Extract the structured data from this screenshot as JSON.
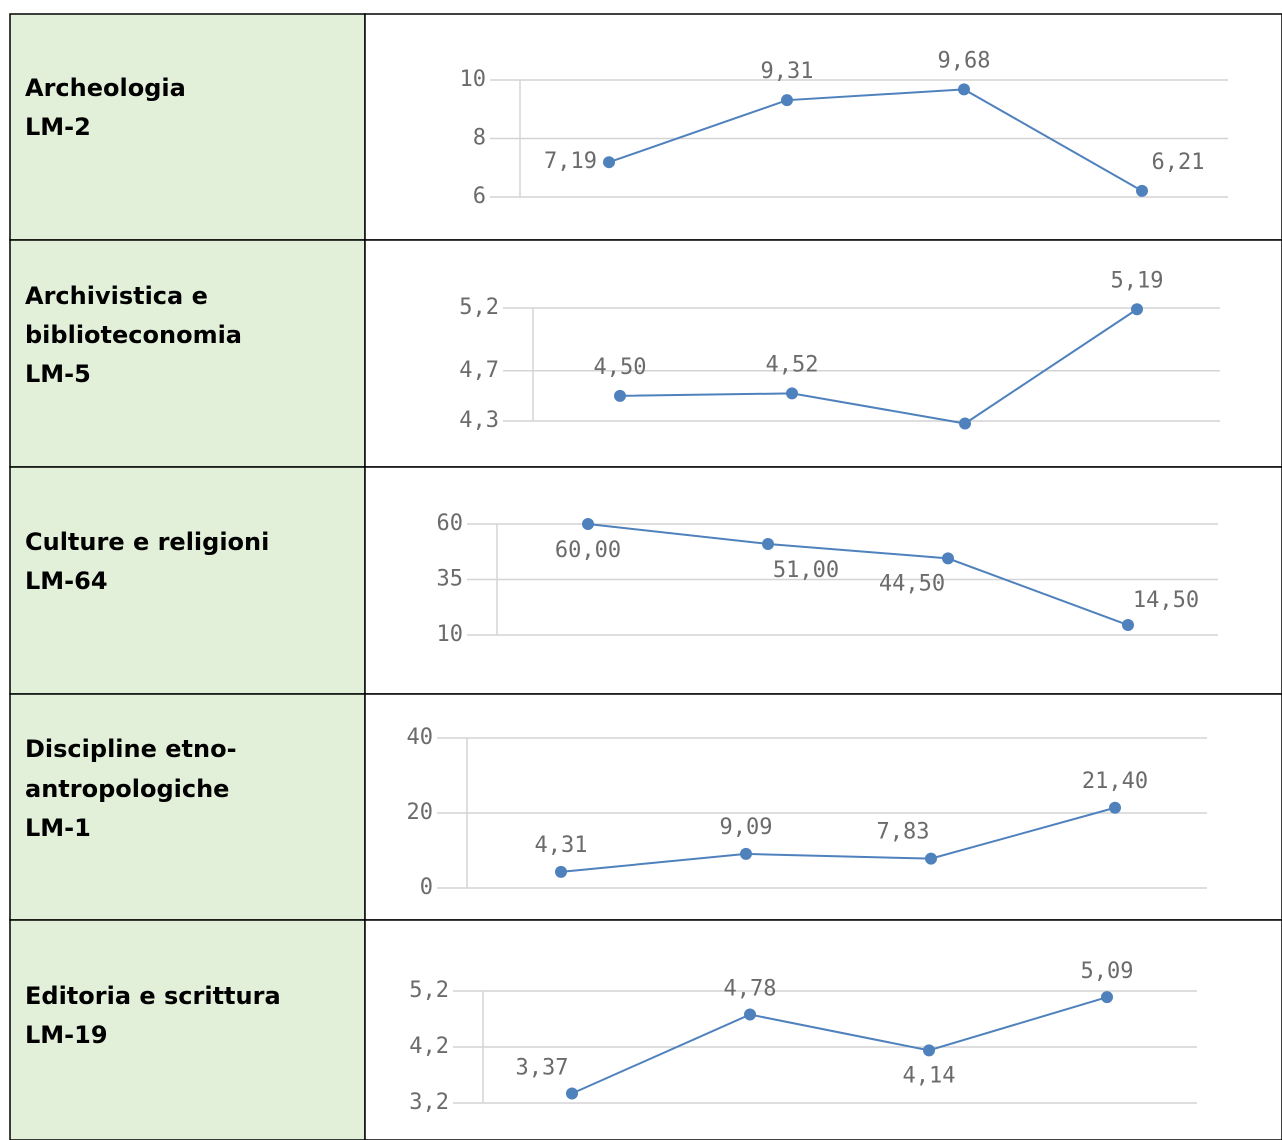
{
  "rows": [
    {
      "label_lines": [
        "Archeologia",
        "LM-2"
      ],
      "chart": {
        "type": "line",
        "color": "#4f81bd",
        "values": [
          7.19,
          9.31,
          9.68,
          6.21
        ],
        "value_labels": [
          "7,19",
          "9,31",
          "9,68",
          "6,21"
        ],
        "ylim": [
          6,
          10
        ],
        "yticks": [
          6,
          8,
          10
        ],
        "grid": true
      }
    },
    {
      "label_lines": [
        "Archivistica e",
        "biblioteconomia",
        "LM-5"
      ],
      "chart": {
        "type": "line",
        "color": "#4f81bd",
        "values": [
          4.5,
          4.52,
          4.28,
          5.19
        ],
        "value_labels": [
          "4,50",
          "4,52",
          null,
          "5,19"
        ],
        "ylim": [
          4.3,
          5.2
        ],
        "yticks": [
          {
            "value": 4.3,
            "label": "4,3"
          },
          {
            "value": 4.7,
            "label": "4,7"
          },
          {
            "value": 5.2,
            "label": "5,2"
          }
        ],
        "grid": true
      }
    },
    {
      "label_lines": [
        "Culture e religioni",
        "LM-64"
      ],
      "chart": {
        "type": "line",
        "color": "#4f81bd",
        "values": [
          60,
          51,
          44.5,
          14.5
        ],
        "value_labels": [
          "60,00",
          "51,00",
          "44,50",
          "14,50"
        ],
        "ylim": [
          10,
          60
        ],
        "yticks": [
          10,
          35,
          60
        ],
        "grid": true
      }
    },
    {
      "label_lines": [
        "Discipline etno-",
        "antropologiche",
        "LM-1"
      ],
      "chart": {
        "type": "line",
        "color": "#4f81bd",
        "values": [
          4.31,
          9.09,
          7.83,
          21.4
        ],
        "value_labels": [
          "4,31",
          "9,09",
          "7,83",
          "21,40"
        ],
        "ylim": [
          0,
          40
        ],
        "yticks": [
          0,
          20,
          40
        ],
        "grid": true
      }
    },
    {
      "label_lines": [
        "Editoria e scrittura",
        "LM-19"
      ],
      "chart": {
        "type": "line",
        "color": "#4f81bd",
        "values": [
          3.37,
          4.78,
          4.14,
          5.09
        ],
        "value_labels": [
          "3,37",
          "4,78",
          "4,14",
          "5,09"
        ],
        "ylim": [
          3.2,
          5.2
        ],
        "yticks": [
          {
            "value": 3.2,
            "label": "3,2"
          },
          {
            "value": 4.2,
            "label": "4,2"
          },
          {
            "value": 5.2,
            "label": "5,2"
          }
        ],
        "grid": true
      }
    }
  ]
}
